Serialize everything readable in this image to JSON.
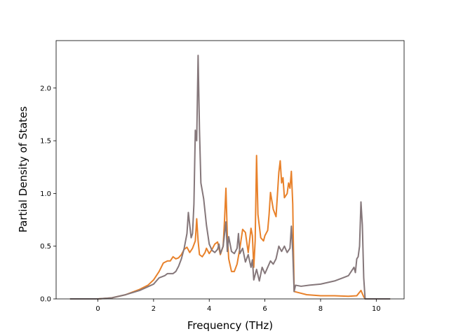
{
  "chart_data": {
    "type": "line",
    "title": "",
    "xlabel": "Frequency (THz)",
    "ylabel": "Partial Density of States",
    "xlim": [
      -1.5,
      11.0
    ],
    "ylim": [
      0.0,
      2.45
    ],
    "xticks": [
      0,
      2,
      4,
      6,
      8,
      10
    ],
    "yticks": [
      0.0,
      0.5,
      1.0,
      1.5,
      2.0
    ],
    "xtick_labels": [
      "0",
      "2",
      "4",
      "6",
      "8",
      "10"
    ],
    "ytick_labels": [
      "0.0",
      "0.5",
      "1.0",
      "1.5",
      "2.0"
    ],
    "grid": false,
    "legend": "none",
    "series": [
      {
        "color": "#e8812a",
        "points": [
          [
            -1.0,
            0.0
          ],
          [
            0.0,
            0.0
          ],
          [
            0.5,
            0.01
          ],
          [
            1.0,
            0.04
          ],
          [
            1.5,
            0.09
          ],
          [
            1.8,
            0.13
          ],
          [
            2.0,
            0.18
          ],
          [
            2.2,
            0.26
          ],
          [
            2.35,
            0.34
          ],
          [
            2.5,
            0.36
          ],
          [
            2.6,
            0.36
          ],
          [
            2.7,
            0.4
          ],
          [
            2.8,
            0.38
          ],
          [
            2.9,
            0.39
          ],
          [
            3.0,
            0.42
          ],
          [
            3.1,
            0.47
          ],
          [
            3.2,
            0.49
          ],
          [
            3.3,
            0.44
          ],
          [
            3.4,
            0.48
          ],
          [
            3.5,
            0.55
          ],
          [
            3.55,
            0.76
          ],
          [
            3.6,
            0.55
          ],
          [
            3.65,
            0.42
          ],
          [
            3.75,
            0.4
          ],
          [
            3.85,
            0.44
          ],
          [
            3.9,
            0.48
          ],
          [
            4.0,
            0.43
          ],
          [
            4.1,
            0.47
          ],
          [
            4.2,
            0.52
          ],
          [
            4.3,
            0.54
          ],
          [
            4.4,
            0.42
          ],
          [
            4.5,
            0.5
          ],
          [
            4.55,
            0.75
          ],
          [
            4.6,
            1.05
          ],
          [
            4.65,
            0.6
          ],
          [
            4.7,
            0.38
          ],
          [
            4.8,
            0.26
          ],
          [
            4.9,
            0.26
          ],
          [
            5.0,
            0.33
          ],
          [
            5.1,
            0.48
          ],
          [
            5.2,
            0.66
          ],
          [
            5.3,
            0.63
          ],
          [
            5.4,
            0.44
          ],
          [
            5.5,
            0.67
          ],
          [
            5.55,
            0.6
          ],
          [
            5.6,
            0.3
          ],
          [
            5.65,
            0.55
          ],
          [
            5.7,
            1.36
          ],
          [
            5.75,
            0.8
          ],
          [
            5.85,
            0.58
          ],
          [
            5.95,
            0.55
          ],
          [
            6.0,
            0.6
          ],
          [
            6.1,
            0.65
          ],
          [
            6.15,
            0.8
          ],
          [
            6.2,
            1.01
          ],
          [
            6.3,
            0.85
          ],
          [
            6.4,
            0.78
          ],
          [
            6.5,
            1.2
          ],
          [
            6.55,
            1.31
          ],
          [
            6.6,
            1.1
          ],
          [
            6.65,
            1.15
          ],
          [
            6.7,
            0.96
          ],
          [
            6.8,
            1.0
          ],
          [
            6.85,
            1.1
          ],
          [
            6.9,
            1.05
          ],
          [
            6.95,
            1.21
          ],
          [
            7.0,
            0.9
          ],
          [
            7.05,
            0.07
          ],
          [
            7.2,
            0.06
          ],
          [
            7.5,
            0.04
          ],
          [
            8.0,
            0.03
          ],
          [
            8.5,
            0.03
          ],
          [
            9.0,
            0.025
          ],
          [
            9.3,
            0.03
          ],
          [
            9.45,
            0.08
          ],
          [
            9.55,
            0.02
          ],
          [
            9.6,
            0.0
          ],
          [
            10.5,
            0.0
          ]
        ]
      },
      {
        "color": "#85777a",
        "points": [
          [
            -1.0,
            0.0
          ],
          [
            0.0,
            0.0
          ],
          [
            0.5,
            0.01
          ],
          [
            1.0,
            0.04
          ],
          [
            1.5,
            0.08
          ],
          [
            2.0,
            0.14
          ],
          [
            2.2,
            0.2
          ],
          [
            2.4,
            0.22
          ],
          [
            2.5,
            0.24
          ],
          [
            2.7,
            0.24
          ],
          [
            2.8,
            0.26
          ],
          [
            2.9,
            0.31
          ],
          [
            3.0,
            0.38
          ],
          [
            3.1,
            0.48
          ],
          [
            3.2,
            0.62
          ],
          [
            3.25,
            0.82
          ],
          [
            3.3,
            0.7
          ],
          [
            3.35,
            0.58
          ],
          [
            3.4,
            0.62
          ],
          [
            3.45,
            0.9
          ],
          [
            3.5,
            1.6
          ],
          [
            3.55,
            1.5
          ],
          [
            3.6,
            2.31
          ],
          [
            3.65,
            1.6
          ],
          [
            3.7,
            1.1
          ],
          [
            3.8,
            0.95
          ],
          [
            3.9,
            0.7
          ],
          [
            4.0,
            0.52
          ],
          [
            4.1,
            0.46
          ],
          [
            4.2,
            0.44
          ],
          [
            4.3,
            0.47
          ],
          [
            4.35,
            0.52
          ],
          [
            4.4,
            0.43
          ],
          [
            4.5,
            0.5
          ],
          [
            4.6,
            0.73
          ],
          [
            4.65,
            0.45
          ],
          [
            4.7,
            0.59
          ],
          [
            4.8,
            0.45
          ],
          [
            4.9,
            0.43
          ],
          [
            5.0,
            0.48
          ],
          [
            5.05,
            0.62
          ],
          [
            5.1,
            0.43
          ],
          [
            5.2,
            0.48
          ],
          [
            5.3,
            0.35
          ],
          [
            5.4,
            0.42
          ],
          [
            5.5,
            0.3
          ],
          [
            5.55,
            0.37
          ],
          [
            5.6,
            0.18
          ],
          [
            5.7,
            0.28
          ],
          [
            5.8,
            0.17
          ],
          [
            5.9,
            0.3
          ],
          [
            6.0,
            0.24
          ],
          [
            6.1,
            0.3
          ],
          [
            6.2,
            0.36
          ],
          [
            6.3,
            0.33
          ],
          [
            6.4,
            0.38
          ],
          [
            6.5,
            0.5
          ],
          [
            6.6,
            0.45
          ],
          [
            6.7,
            0.5
          ],
          [
            6.8,
            0.44
          ],
          [
            6.9,
            0.48
          ],
          [
            6.95,
            0.69
          ],
          [
            7.0,
            0.45
          ],
          [
            7.05,
            0.07
          ],
          [
            7.1,
            0.13
          ],
          [
            7.3,
            0.12
          ],
          [
            7.6,
            0.13
          ],
          [
            8.0,
            0.14
          ],
          [
            8.5,
            0.17
          ],
          [
            8.8,
            0.2
          ],
          [
            9.0,
            0.22
          ],
          [
            9.1,
            0.26
          ],
          [
            9.2,
            0.3
          ],
          [
            9.25,
            0.25
          ],
          [
            9.3,
            0.38
          ],
          [
            9.35,
            0.4
          ],
          [
            9.4,
            0.5
          ],
          [
            9.45,
            0.92
          ],
          [
            9.5,
            0.7
          ],
          [
            9.55,
            0.2
          ],
          [
            9.6,
            0.0
          ],
          [
            10.5,
            0.0
          ]
        ]
      }
    ]
  }
}
